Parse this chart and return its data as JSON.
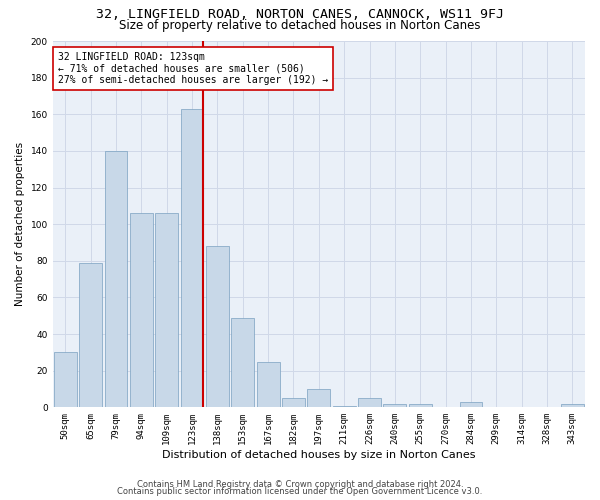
{
  "title": "32, LINGFIELD ROAD, NORTON CANES, CANNOCK, WS11 9FJ",
  "subtitle": "Size of property relative to detached houses in Norton Canes",
  "xlabel": "Distribution of detached houses by size in Norton Canes",
  "ylabel": "Number of detached properties",
  "categories": [
    "50sqm",
    "65sqm",
    "79sqm",
    "94sqm",
    "109sqm",
    "123sqm",
    "138sqm",
    "153sqm",
    "167sqm",
    "182sqm",
    "197sqm",
    "211sqm",
    "226sqm",
    "240sqm",
    "255sqm",
    "270sqm",
    "284sqm",
    "299sqm",
    "314sqm",
    "328sqm",
    "343sqm"
  ],
  "values": [
    30,
    79,
    140,
    106,
    106,
    163,
    88,
    49,
    25,
    5,
    10,
    1,
    5,
    2,
    2,
    0,
    3,
    0,
    0,
    0,
    2
  ],
  "bar_color": "#c8d8e8",
  "bar_edge_color": "#7aa0c0",
  "highlight_index": 5,
  "highlight_line_color": "#cc0000",
  "ylim": [
    0,
    200
  ],
  "yticks": [
    0,
    20,
    40,
    60,
    80,
    100,
    120,
    140,
    160,
    180,
    200
  ],
  "annotation_text": "32 LINGFIELD ROAD: 123sqm\n← 71% of detached houses are smaller (506)\n27% of semi-detached houses are larger (192) →",
  "annotation_box_color": "#ffffff",
  "annotation_box_edge": "#cc0000",
  "footer1": "Contains HM Land Registry data © Crown copyright and database right 2024.",
  "footer2": "Contains public sector information licensed under the Open Government Licence v3.0.",
  "bg_color": "#ffffff",
  "grid_color": "#d0d8e8",
  "plot_bg_color": "#eaf0f8",
  "title_fontsize": 9.5,
  "subtitle_fontsize": 8.5,
  "xlabel_fontsize": 8,
  "ylabel_fontsize": 7.5,
  "tick_fontsize": 6.5,
  "annotation_fontsize": 7,
  "footer_fontsize": 6
}
